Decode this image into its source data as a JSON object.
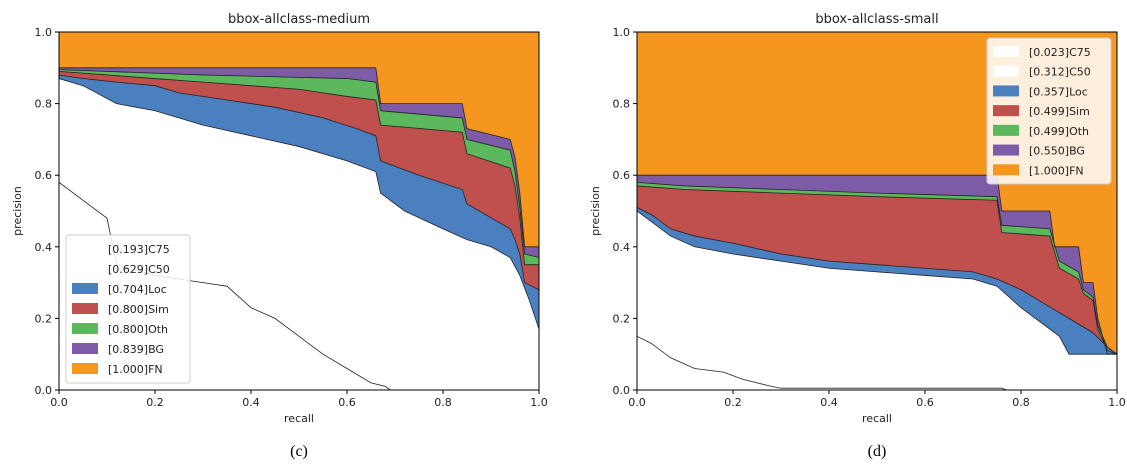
{
  "chart_data": [
    {
      "type": "area",
      "title": "bbox-allclass-medium",
      "xlabel": "recall",
      "ylabel": "precision",
      "xlim": [
        0,
        1
      ],
      "ylim": [
        0,
        1
      ],
      "xticks": [
        "0.0",
        "0.2",
        "0.4",
        "0.6",
        "0.8",
        "1.0"
      ],
      "yticks": [
        "0.0",
        "0.2",
        "0.4",
        "0.6",
        "0.8",
        "1.0"
      ],
      "legend_position": "lower-left",
      "caption": "(c)",
      "series": [
        {
          "name": "[1.000]FN",
          "color": "#f5961e",
          "x": [
            0,
            1
          ],
          "y": [
            1.0,
            1.0
          ]
        },
        {
          "name": "[0.839]BG",
          "color": "#7d5ba6",
          "x": [
            0,
            0.66,
            0.67,
            0.84,
            0.85,
            0.94,
            0.95,
            0.96,
            0.97,
            1.0
          ],
          "y": [
            0.9,
            0.9,
            0.8,
            0.8,
            0.73,
            0.7,
            0.65,
            0.55,
            0.4,
            0.4
          ]
        },
        {
          "name": "[0.800]Oth",
          "color": "#5cb85c",
          "x": [
            0,
            0.3,
            0.6,
            0.66,
            0.67,
            0.84,
            0.85,
            0.94,
            0.95,
            0.96,
            0.97,
            1.0
          ],
          "y": [
            0.895,
            0.88,
            0.87,
            0.86,
            0.78,
            0.76,
            0.7,
            0.67,
            0.61,
            0.51,
            0.38,
            0.37
          ]
        },
        {
          "name": "[0.800]Sim",
          "color": "#c0504d",
          "x": [
            0,
            0.1,
            0.2,
            0.3,
            0.4,
            0.5,
            0.6,
            0.66,
            0.67,
            0.84,
            0.85,
            0.94,
            0.95,
            0.96,
            0.97,
            1.0
          ],
          "y": [
            0.89,
            0.88,
            0.87,
            0.86,
            0.85,
            0.84,
            0.82,
            0.81,
            0.74,
            0.72,
            0.66,
            0.62,
            0.57,
            0.48,
            0.35,
            0.35
          ]
        },
        {
          "name": "[0.704]Loc",
          "color": "#4a80c0",
          "x": [
            0,
            0.05,
            0.12,
            0.2,
            0.25,
            0.35,
            0.45,
            0.55,
            0.62,
            0.66,
            0.67,
            0.75,
            0.84,
            0.85,
            0.94,
            0.95,
            0.96,
            0.97,
            1.0
          ],
          "y": [
            0.88,
            0.87,
            0.86,
            0.85,
            0.83,
            0.81,
            0.79,
            0.76,
            0.73,
            0.71,
            0.64,
            0.6,
            0.56,
            0.52,
            0.45,
            0.42,
            0.38,
            0.3,
            0.28
          ]
        },
        {
          "name": "[0.629]C50",
          "color": "#ffffff",
          "x": [
            0,
            0.05,
            0.12,
            0.2,
            0.3,
            0.4,
            0.5,
            0.6,
            0.66,
            0.67,
            0.72,
            0.8,
            0.85,
            0.9,
            0.94,
            0.96,
            0.98,
            1.0
          ],
          "y": [
            0.87,
            0.85,
            0.8,
            0.78,
            0.74,
            0.71,
            0.68,
            0.64,
            0.61,
            0.55,
            0.5,
            0.45,
            0.42,
            0.4,
            0.37,
            0.32,
            0.25,
            0.17
          ]
        },
        {
          "name": "[0.193]C75",
          "color": "#ffffff",
          "x": [
            0,
            0.05,
            0.1,
            0.12,
            0.2,
            0.3,
            0.35,
            0.4,
            0.45,
            0.5,
            0.55,
            0.6,
            0.65,
            0.68,
            0.69,
            1.0
          ],
          "y": [
            0.58,
            0.53,
            0.48,
            0.35,
            0.32,
            0.3,
            0.29,
            0.23,
            0.2,
            0.15,
            0.1,
            0.06,
            0.02,
            0.01,
            0.0,
            0.0
          ]
        }
      ]
    },
    {
      "type": "area",
      "title": "bbox-allclass-small",
      "xlabel": "recall",
      "ylabel": "precision",
      "xlim": [
        0,
        1
      ],
      "ylim": [
        0,
        1
      ],
      "xticks": [
        "0.0",
        "0.2",
        "0.4",
        "0.6",
        "0.8",
        "1.0"
      ],
      "yticks": [
        "0.0",
        "0.2",
        "0.4",
        "0.6",
        "0.8",
        "1.0"
      ],
      "legend_position": "upper-right",
      "caption": "(d)",
      "series": [
        {
          "name": "[1.000]FN",
          "color": "#f5961e",
          "x": [
            0,
            1
          ],
          "y": [
            1.0,
            1.0
          ]
        },
        {
          "name": "[0.550]BG",
          "color": "#7d5ba6",
          "x": [
            0,
            0.75,
            0.76,
            0.86,
            0.87,
            0.92,
            0.93,
            0.95,
            0.96,
            0.98,
            1.0
          ],
          "y": [
            0.6,
            0.6,
            0.5,
            0.5,
            0.4,
            0.4,
            0.3,
            0.3,
            0.2,
            0.1,
            0.1
          ]
        },
        {
          "name": "[0.499]Oth",
          "color": "#5cb85c",
          "x": [
            0,
            0.1,
            0.3,
            0.5,
            0.75,
            0.76,
            0.86,
            0.88,
            0.92,
            0.93,
            0.95,
            0.96,
            0.98,
            1.0
          ],
          "y": [
            0.58,
            0.57,
            0.56,
            0.55,
            0.54,
            0.46,
            0.45,
            0.36,
            0.33,
            0.28,
            0.26,
            0.18,
            0.12,
            0.1
          ]
        },
        {
          "name": "[0.499]Sim",
          "color": "#c0504d",
          "x": [
            0,
            0.1,
            0.3,
            0.5,
            0.75,
            0.76,
            0.86,
            0.88,
            0.92,
            0.93,
            0.95,
            0.96,
            0.98,
            1.0
          ],
          "y": [
            0.57,
            0.56,
            0.55,
            0.54,
            0.53,
            0.44,
            0.43,
            0.34,
            0.31,
            0.27,
            0.25,
            0.17,
            0.11,
            0.1
          ]
        },
        {
          "name": "[0.357]Loc",
          "color": "#4a80c0",
          "x": [
            0,
            0.03,
            0.07,
            0.12,
            0.2,
            0.3,
            0.4,
            0.5,
            0.6,
            0.7,
            0.75,
            0.8,
            0.85,
            0.9,
            0.95,
            0.98,
            1.0
          ],
          "y": [
            0.51,
            0.49,
            0.45,
            0.43,
            0.41,
            0.38,
            0.36,
            0.35,
            0.34,
            0.33,
            0.31,
            0.28,
            0.24,
            0.2,
            0.16,
            0.12,
            0.1
          ]
        },
        {
          "name": "[0.312]C50",
          "color": "#ffffff",
          "x": [
            0,
            0.03,
            0.07,
            0.12,
            0.2,
            0.3,
            0.4,
            0.5,
            0.6,
            0.7,
            0.75,
            0.8,
            0.85,
            0.88,
            0.9,
            1.0
          ],
          "y": [
            0.5,
            0.47,
            0.43,
            0.4,
            0.38,
            0.36,
            0.34,
            0.33,
            0.32,
            0.31,
            0.29,
            0.23,
            0.18,
            0.15,
            0.1,
            0.1
          ]
        },
        {
          "name": "[0.023]C75",
          "color": "#ffffff",
          "x": [
            0,
            0.03,
            0.07,
            0.12,
            0.18,
            0.22,
            0.28,
            0.3,
            0.76,
            0.77,
            1.0
          ],
          "y": [
            0.15,
            0.13,
            0.09,
            0.06,
            0.05,
            0.03,
            0.01,
            0.005,
            0.005,
            0.0,
            0.0
          ]
        }
      ]
    }
  ]
}
